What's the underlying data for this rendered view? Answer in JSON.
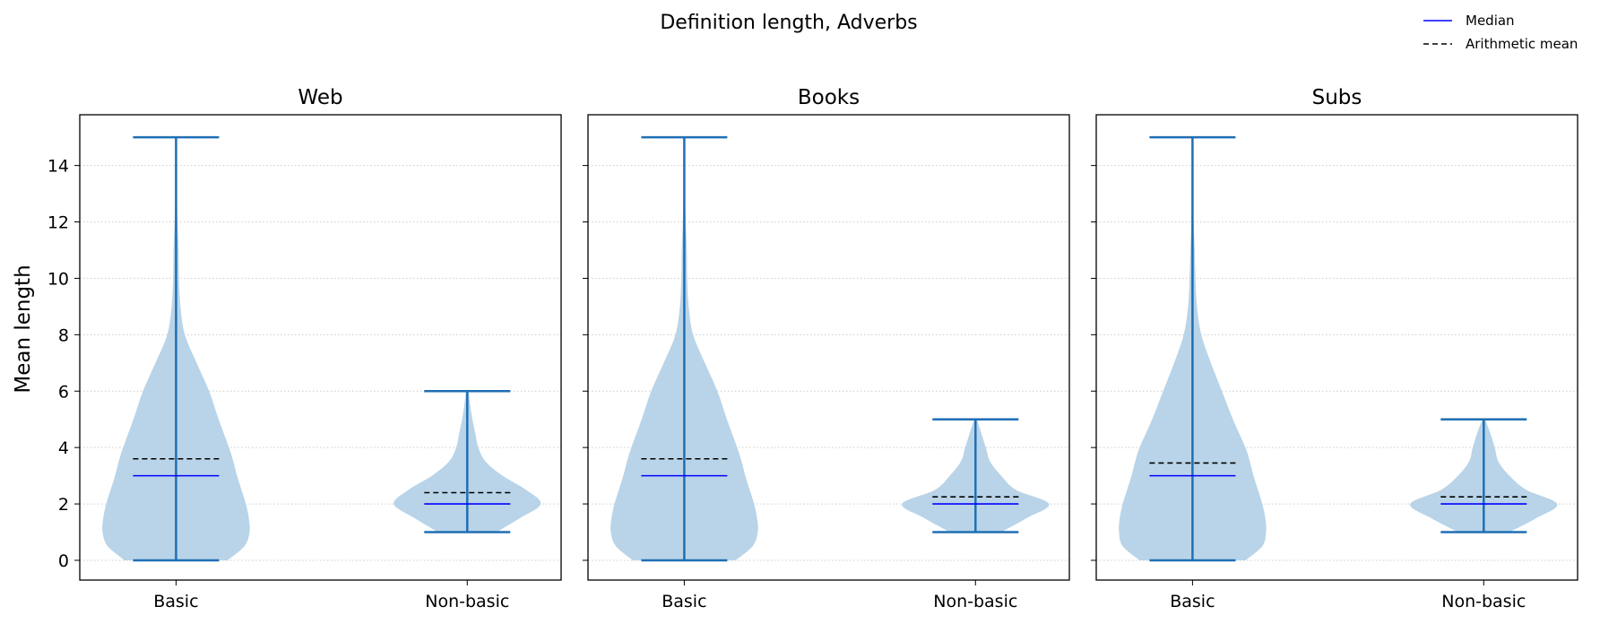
{
  "chart_data": {
    "type": "violin",
    "title": "Definition length, Adverbs",
    "ylabel": "Mean length",
    "ylim": [
      -0.7,
      15.8
    ],
    "yticks": [
      0,
      2,
      4,
      6,
      8,
      10,
      12,
      14
    ],
    "grid": "horizontal dotted",
    "categories": [
      "Basic",
      "Non-basic"
    ],
    "legend": {
      "placement": "top-right",
      "entries": [
        {
          "label": "Median",
          "style": "solid",
          "color": "#0000ff"
        },
        {
          "label": "Arithmetic mean",
          "style": "dashed",
          "color": "#000000"
        }
      ]
    },
    "colors": {
      "violin_fill": "#b9d4e8",
      "whisker": "#1f6fb4",
      "median": "#0000ff",
      "mean": "#000000",
      "grid": "#cccccc"
    },
    "panels": [
      {
        "title": "Web",
        "violins": [
          {
            "category": "Basic",
            "min": 0,
            "max": 15,
            "median": 3,
            "mean": 3.6,
            "density": [
              [
                0,
                0.7
              ],
              [
                0.5,
                0.93
              ],
              [
                1,
                1
              ],
              [
                1.5,
                0.99
              ],
              [
                2,
                0.95
              ],
              [
                2.5,
                0.89
              ],
              [
                3,
                0.83
              ],
              [
                3.5,
                0.78
              ],
              [
                4,
                0.72
              ],
              [
                5,
                0.58
              ],
              [
                6,
                0.45
              ],
              [
                7,
                0.28
              ],
              [
                8,
                0.12
              ],
              [
                9,
                0.06
              ],
              [
                10,
                0.04
              ],
              [
                11,
                0.035
              ],
              [
                12,
                0.02
              ],
              [
                13,
                0.01
              ],
              [
                14,
                0.005
              ],
              [
                15,
                0.003
              ]
            ]
          },
          {
            "category": "Non-basic",
            "min": 1,
            "max": 6,
            "median": 2,
            "mean": 2.4,
            "density": [
              [
                1,
                0.4
              ],
              [
                1.5,
                0.72
              ],
              [
                2,
                1
              ],
              [
                2.5,
                0.8
              ],
              [
                3,
                0.48
              ],
              [
                3.5,
                0.25
              ],
              [
                4,
                0.15
              ],
              [
                4.5,
                0.11
              ],
              [
                5,
                0.07
              ],
              [
                5.5,
                0.04
              ],
              [
                6,
                0.02
              ]
            ]
          }
        ]
      },
      {
        "title": "Books",
        "violins": [
          {
            "category": "Basic",
            "min": 0,
            "max": 15,
            "median": 3,
            "mean": 3.6,
            "density": [
              [
                0,
                0.7
              ],
              [
                0.5,
                0.93
              ],
              [
                1,
                1
              ],
              [
                1.5,
                0.99
              ],
              [
                2,
                0.95
              ],
              [
                2.5,
                0.89
              ],
              [
                3,
                0.83
              ],
              [
                3.5,
                0.78
              ],
              [
                4,
                0.72
              ],
              [
                5,
                0.58
              ],
              [
                6,
                0.45
              ],
              [
                7,
                0.28
              ],
              [
                8,
                0.12
              ],
              [
                9,
                0.06
              ],
              [
                10,
                0.04
              ],
              [
                11,
                0.035
              ],
              [
                12,
                0.02
              ],
              [
                13,
                0.01
              ],
              [
                14,
                0.005
              ],
              [
                15,
                0.003
              ]
            ]
          },
          {
            "category": "Non-basic",
            "min": 1,
            "max": 5,
            "median": 2,
            "mean": 2.25,
            "density": [
              [
                1,
                0.35
              ],
              [
                1.5,
                0.7
              ],
              [
                2,
                1
              ],
              [
                2.5,
                0.55
              ],
              [
                3,
                0.35
              ],
              [
                3.5,
                0.2
              ],
              [
                4,
                0.14
              ],
              [
                4.5,
                0.08
              ],
              [
                5,
                0.02
              ]
            ]
          }
        ]
      },
      {
        "title": "Subs",
        "violins": [
          {
            "category": "Basic",
            "min": 0,
            "max": 15,
            "median": 3,
            "mean": 3.45,
            "density": [
              [
                0,
                0.72
              ],
              [
                0.5,
                0.95
              ],
              [
                1,
                1
              ],
              [
                1.5,
                0.99
              ],
              [
                2,
                0.95
              ],
              [
                2.5,
                0.89
              ],
              [
                3,
                0.83
              ],
              [
                3.5,
                0.78
              ],
              [
                4,
                0.72
              ],
              [
                5,
                0.55
              ],
              [
                6,
                0.4
              ],
              [
                7,
                0.25
              ],
              [
                8,
                0.12
              ],
              [
                9,
                0.06
              ],
              [
                10,
                0.04
              ],
              [
                11,
                0.03
              ],
              [
                12,
                0.015
              ],
              [
                13,
                0.008
              ],
              [
                14,
                0.004
              ],
              [
                15,
                0.002
              ]
            ]
          },
          {
            "category": "Non-basic",
            "min": 1,
            "max": 5,
            "median": 2,
            "mean": 2.25,
            "density": [
              [
                1,
                0.35
              ],
              [
                1.5,
                0.72
              ],
              [
                2,
                1
              ],
              [
                2.5,
                0.58
              ],
              [
                3,
                0.35
              ],
              [
                3.5,
                0.2
              ],
              [
                4,
                0.15
              ],
              [
                4.5,
                0.09
              ],
              [
                5,
                0.02
              ]
            ]
          }
        ]
      }
    ]
  }
}
